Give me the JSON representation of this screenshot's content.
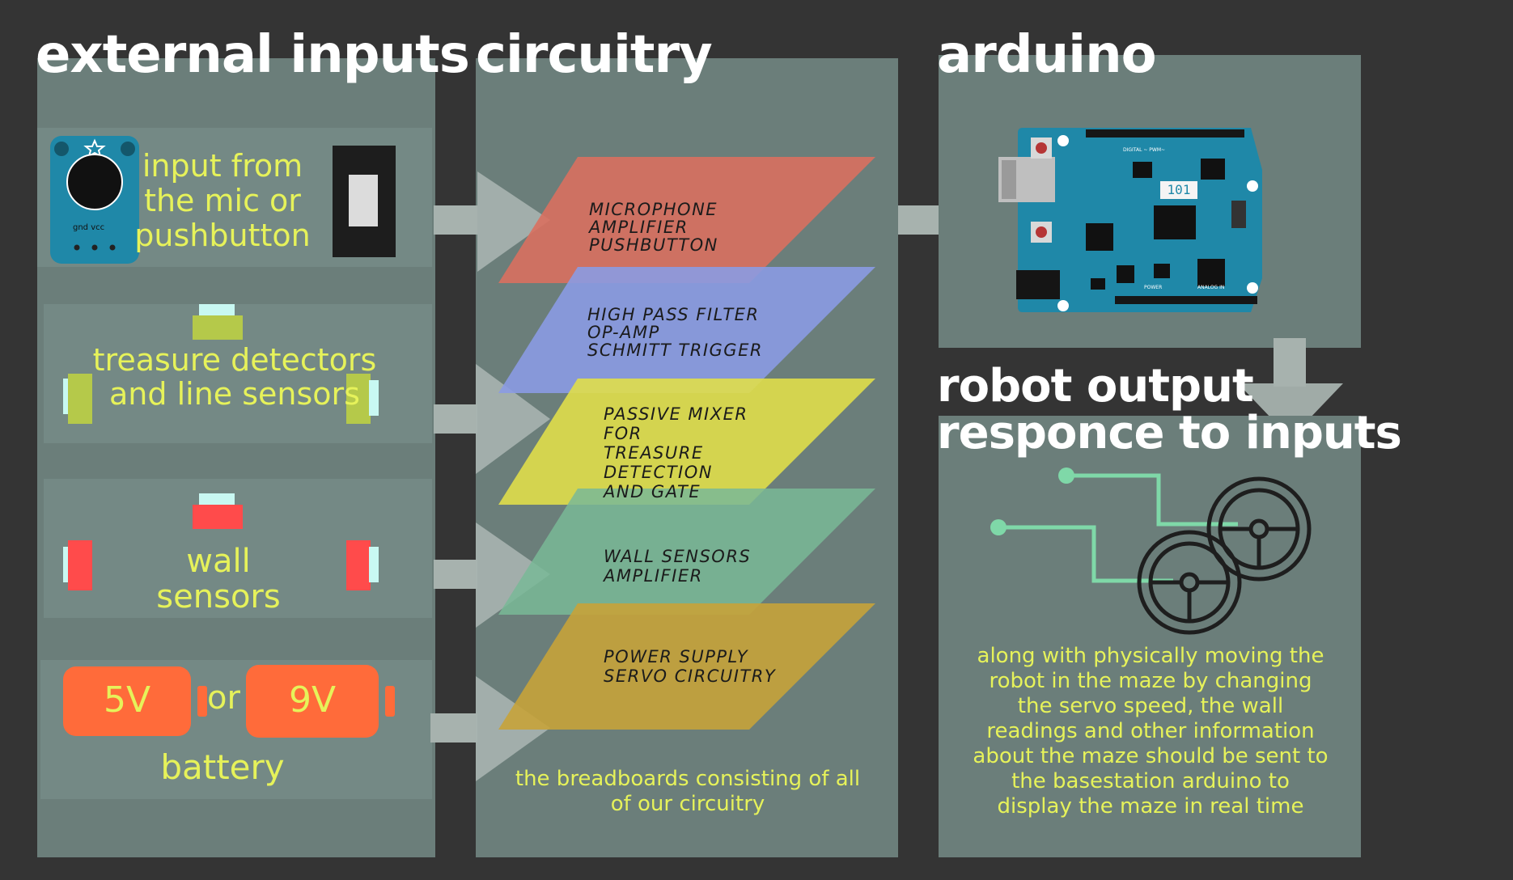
{
  "headings": {
    "external_inputs": "external inputs",
    "circuitry": "circuitry",
    "arduino": "arduino",
    "robot_output_line1": "robot output",
    "robot_output_line2": "responce to inputs"
  },
  "inputs": {
    "mic": {
      "lines": [
        "input from",
        "the mic or",
        "pushbutton"
      ],
      "pin_label": "gnd vcc"
    },
    "treasure": {
      "lines": [
        "treasure detectors",
        "and line sensors"
      ]
    },
    "wall": {
      "lines": [
        "wall",
        "sensors"
      ]
    },
    "battery": {
      "left": "5V",
      "or": "or",
      "right": "9V",
      "label": "battery"
    }
  },
  "layers": [
    {
      "color": "#d9705f",
      "lines": [
        "MICROPHONE",
        "AMPLIFIER",
        "PUSHBUTTON"
      ]
    },
    {
      "color": "#8b9be3",
      "lines": [
        "HIGH PASS FILTER",
        "OP-AMP",
        "SCHMITT TRIGGER"
      ]
    },
    {
      "color": "#e0de4a",
      "lines": [
        "PASSIVE MIXER",
        "FOR",
        "TREASURE",
        "DETECTION",
        "AND GATE"
      ]
    },
    {
      "color": "#79b897",
      "lines": [
        "WALL SENSORS",
        "AMPLIFIER"
      ]
    },
    {
      "color": "#c7a33a",
      "lines": [
        "POWER SUPPLY",
        "SERVO CIRCUITRY"
      ]
    }
  ],
  "circuitry_caption": [
    "the breadboards consisting of all",
    "of our circuitry"
  ],
  "arduino_board": {
    "model": "101",
    "header_label": "DIGITAL ~ PWM~",
    "power_label": "POWER",
    "analog_label": "ANALOG IN"
  },
  "robot_output_desc": [
    "along with physically moving the",
    "robot in the maze by changing",
    "the servo speed, the wall",
    "readings and  other information",
    "about the maze should be sent to",
    "the basestation arduino to",
    "display the maze in real time"
  ],
  "colors": {
    "background": "#343434",
    "panel": "#6b7e7a",
    "accent_yellow": "#e6f25a",
    "sensor_green": "#b5c94a",
    "sensor_red": "#ff4b4b",
    "battery_orange": "#ff6b3a",
    "trace_green": "#7fd8a8",
    "arduino_blue": "#1f88a8"
  }
}
